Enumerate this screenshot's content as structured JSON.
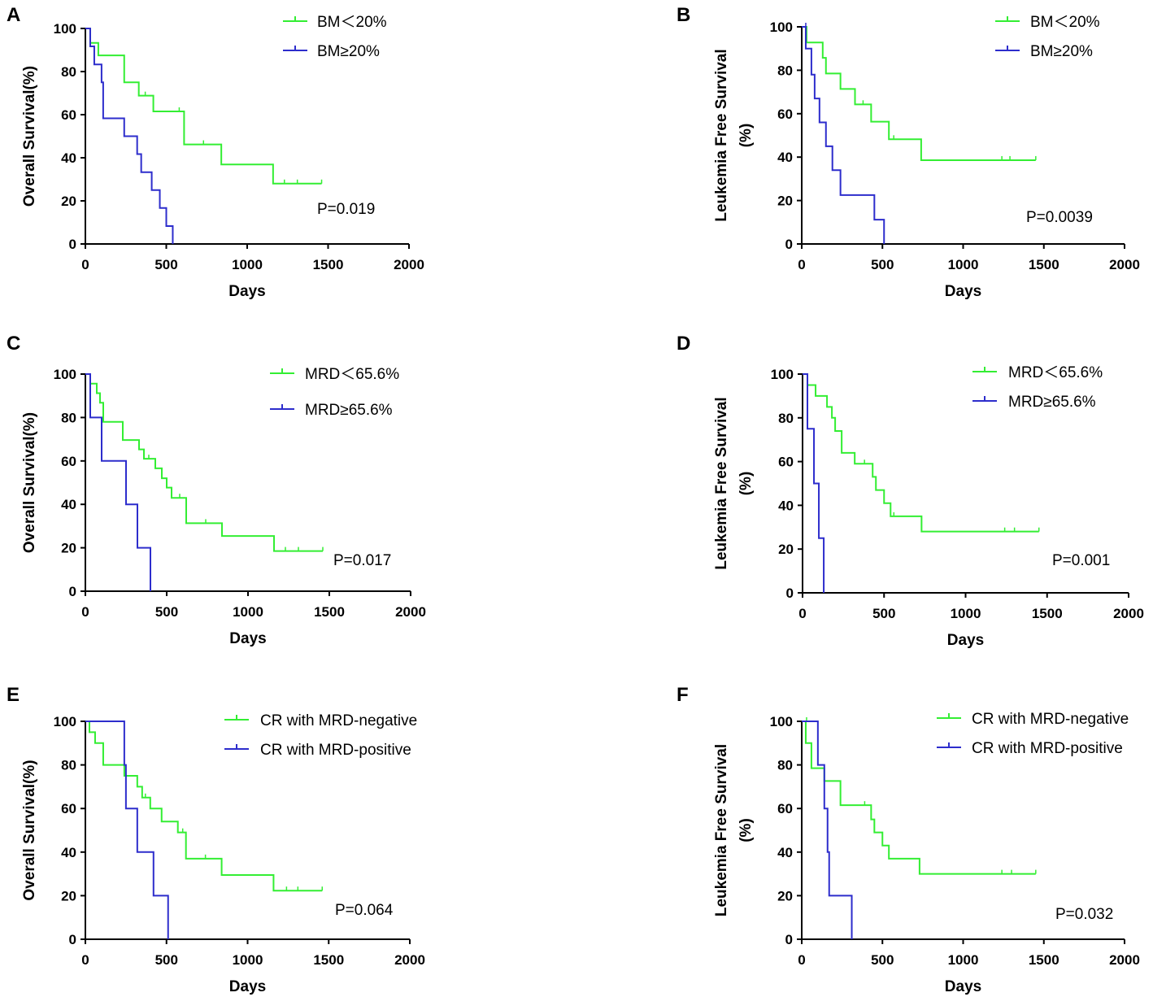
{
  "chart_data": [
    {
      "panel": "A",
      "type": "line",
      "ylabel": [
        "Overall Survival(%)"
      ],
      "xlabel": "Days",
      "xlim": [
        0,
        2000
      ],
      "ylim": [
        0,
        100
      ],
      "xticks": [
        0,
        500,
        1000,
        1500,
        2000
      ],
      "yticks": [
        0,
        20,
        40,
        60,
        80,
        100
      ],
      "pvalue": "P=0.019",
      "series": [
        {
          "name": "BM＜20%",
          "color": "#33ee33",
          "steps": [
            [
              0,
              100
            ],
            [
              30,
              93.3
            ],
            [
              80,
              87.5
            ],
            [
              240,
              75
            ],
            [
              330,
              68.8
            ],
            [
              420,
              61.5
            ],
            [
              610,
              46.2
            ],
            [
              840,
              36.9
            ],
            [
              1160,
              28
            ]
          ],
          "end": 1460,
          "censors": [
            [
              370,
              68.8
            ],
            [
              580,
              61.5
            ],
            [
              730,
              46.2
            ],
            [
              1230,
              28
            ],
            [
              1310,
              28
            ],
            [
              1460,
              28
            ]
          ]
        },
        {
          "name": "BM≥20%",
          "color": "#2d2dcc",
          "steps": [
            [
              0,
              100
            ],
            [
              30,
              91.7
            ],
            [
              55,
              83.3
            ],
            [
              100,
              75
            ],
            [
              110,
              58.3
            ],
            [
              240,
              50
            ],
            [
              320,
              41.7
            ],
            [
              345,
              33.3
            ],
            [
              410,
              25
            ],
            [
              460,
              16.7
            ],
            [
              500,
              8.3
            ],
            [
              540,
              0
            ]
          ],
          "end": 540,
          "censors": []
        }
      ]
    },
    {
      "panel": "B",
      "type": "line",
      "ylabel": [
        "Leukemia Free Survival",
        "(%)"
      ],
      "xlabel": "Days",
      "xlim": [
        0,
        2000
      ],
      "ylim": [
        0,
        100
      ],
      "xticks": [
        0,
        500,
        1000,
        1500,
        2000
      ],
      "yticks": [
        0,
        20,
        40,
        60,
        80,
        100
      ],
      "pvalue": "P=0.0039",
      "series": [
        {
          "name": "BM＜20%",
          "color": "#33ee33",
          "steps": [
            [
              0,
              100
            ],
            [
              30,
              92.8
            ],
            [
              130,
              85.7
            ],
            [
              150,
              78.5
            ],
            [
              240,
              71.4
            ],
            [
              330,
              64.3
            ],
            [
              430,
              56.3
            ],
            [
              540,
              48.2
            ],
            [
              740,
              38.6
            ]
          ],
          "end": 1450,
          "censors": [
            [
              380,
              64.3
            ],
            [
              570,
              48.2
            ],
            [
              1240,
              38.6
            ],
            [
              1290,
              38.6
            ],
            [
              1450,
              38.6
            ]
          ]
        },
        {
          "name": "BM≥20%",
          "color": "#2d2dcc",
          "steps": [
            [
              0,
              100
            ],
            [
              25,
              90
            ],
            [
              60,
              78
            ],
            [
              80,
              67
            ],
            [
              110,
              56
            ],
            [
              150,
              45
            ],
            [
              190,
              34
            ],
            [
              240,
              22.5
            ],
            [
              450,
              11.2
            ],
            [
              510,
              0
            ]
          ],
          "end": 510,
          "censors": [
            [
              25,
              100
            ]
          ]
        }
      ]
    },
    {
      "panel": "C",
      "type": "line",
      "ylabel": [
        "Overall Survival(%)"
      ],
      "xlabel": "Days",
      "xlim": [
        0,
        2000
      ],
      "ylim": [
        0,
        100
      ],
      "xticks": [
        0,
        500,
        1000,
        1500,
        2000
      ],
      "yticks": [
        0,
        20,
        40,
        60,
        80,
        100
      ],
      "pvalue": "P=0.017",
      "series": [
        {
          "name": "MRD＜65.6%",
          "color": "#33ee33",
          "steps": [
            [
              0,
              100
            ],
            [
              30,
              95.6
            ],
            [
              70,
              91.2
            ],
            [
              90,
              86.8
            ],
            [
              110,
              78
            ],
            [
              230,
              69.6
            ],
            [
              330,
              65.3
            ],
            [
              360,
              61
            ],
            [
              430,
              56.6
            ],
            [
              470,
              52
            ],
            [
              500,
              47.7
            ],
            [
              530,
              43
            ],
            [
              620,
              31.3
            ],
            [
              840,
              25.4
            ],
            [
              1160,
              18.5
            ]
          ],
          "end": 1460,
          "censors": [
            [
              390,
              61
            ],
            [
              580,
              43
            ],
            [
              740,
              31.3
            ],
            [
              1230,
              18.5
            ],
            [
              1310,
              18.5
            ],
            [
              1460,
              18.5
            ]
          ]
        },
        {
          "name": "MRD≥65.6%",
          "color": "#2d2dcc",
          "steps": [
            [
              0,
              100
            ],
            [
              30,
              80
            ],
            [
              100,
              60
            ],
            [
              250,
              40
            ],
            [
              320,
              20
            ],
            [
              400,
              0
            ]
          ],
          "end": 400,
          "censors": []
        }
      ]
    },
    {
      "panel": "D",
      "type": "line",
      "ylabel": [
        "Leukemia Free Survival",
        "(%)"
      ],
      "xlabel": "Days",
      "xlim": [
        0,
        2000
      ],
      "ylim": [
        0,
        100
      ],
      "xticks": [
        0,
        500,
        1000,
        1500,
        2000
      ],
      "yticks": [
        0,
        20,
        40,
        60,
        80,
        100
      ],
      "pvalue": "P=0.001",
      "series": [
        {
          "name": "MRD＜65.6%",
          "color": "#33ee33",
          "steps": [
            [
              0,
              100
            ],
            [
              30,
              95
            ],
            [
              80,
              90
            ],
            [
              150,
              85
            ],
            [
              180,
              80
            ],
            [
              200,
              74
            ],
            [
              240,
              64
            ],
            [
              320,
              59
            ],
            [
              430,
              53
            ],
            [
              450,
              47
            ],
            [
              500,
              41
            ],
            [
              540,
              35
            ],
            [
              730,
              28
            ]
          ],
          "end": 1450,
          "censors": [
            [
              380,
              59
            ],
            [
              560,
              35
            ],
            [
              1240,
              28
            ],
            [
              1300,
              28
            ],
            [
              1450,
              28
            ]
          ]
        },
        {
          "name": "MRD≥65.6%",
          "color": "#2d2dcc",
          "steps": [
            [
              0,
              100
            ],
            [
              30,
              75
            ],
            [
              70,
              50
            ],
            [
              100,
              25
            ],
            [
              130,
              0
            ]
          ],
          "end": 130,
          "censors": []
        }
      ]
    },
    {
      "panel": "E",
      "type": "line",
      "ylabel": [
        "Overall Survival(%)"
      ],
      "xlabel": "Days",
      "xlim": [
        0,
        2000
      ],
      "ylim": [
        0,
        100
      ],
      "xticks": [
        0,
        500,
        1000,
        1500,
        2000
      ],
      "yticks": [
        0,
        20,
        40,
        60,
        80,
        100
      ],
      "pvalue": "P=0.064",
      "series": [
        {
          "name": "CR with MRD-negative",
          "color": "#33ee33",
          "steps": [
            [
              0,
              100
            ],
            [
              25,
              95
            ],
            [
              60,
              90
            ],
            [
              110,
              80
            ],
            [
              240,
              75
            ],
            [
              320,
              70
            ],
            [
              350,
              65
            ],
            [
              400,
              60
            ],
            [
              470,
              54
            ],
            [
              570,
              49
            ],
            [
              620,
              37
            ],
            [
              840,
              29.5
            ],
            [
              1160,
              22.3
            ]
          ],
          "end": 1460,
          "censors": [
            [
              370,
              65
            ],
            [
              600,
              49
            ],
            [
              740,
              37
            ],
            [
              1240,
              22.3
            ],
            [
              1310,
              22.3
            ],
            [
              1460,
              22.3
            ]
          ]
        },
        {
          "name": "CR with MRD-positive",
          "color": "#2d2dcc",
          "steps": [
            [
              0,
              100
            ],
            [
              240,
              80
            ],
            [
              250,
              60
            ],
            [
              320,
              40
            ],
            [
              420,
              20
            ],
            [
              510,
              0
            ]
          ],
          "end": 510,
          "censors": []
        }
      ]
    },
    {
      "panel": "F",
      "type": "line",
      "ylabel": [
        "Leukemia Free Survival",
        "(%)"
      ],
      "xlabel": "Days",
      "xlim": [
        0,
        2000
      ],
      "ylim": [
        0,
        100
      ],
      "xticks": [
        0,
        500,
        1000,
        1500,
        2000
      ],
      "yticks": [
        0,
        20,
        40,
        60,
        80,
        100
      ],
      "pvalue": "P=0.032",
      "series": [
        {
          "name": "CR with MRD-negative",
          "color": "#33ee33",
          "steps": [
            [
              0,
              100
            ],
            [
              25,
              90
            ],
            [
              60,
              78.5
            ],
            [
              140,
              72.6
            ],
            [
              240,
              61.5
            ],
            [
              430,
              55
            ],
            [
              450,
              49
            ],
            [
              500,
              43
            ],
            [
              540,
              37
            ],
            [
              730,
              30
            ]
          ],
          "end": 1450,
          "censors": [
            [
              30,
              100
            ],
            [
              390,
              61.5
            ],
            [
              1240,
              30
            ],
            [
              1300,
              30
            ],
            [
              1450,
              30
            ]
          ]
        },
        {
          "name": "CR with MRD-positive",
          "color": "#2d2dcc",
          "steps": [
            [
              0,
              100
            ],
            [
              100,
              80
            ],
            [
              140,
              60
            ],
            [
              160,
              40
            ],
            [
              170,
              20
            ],
            [
              310,
              0
            ]
          ],
          "end": 310,
          "censors": []
        }
      ]
    }
  ]
}
